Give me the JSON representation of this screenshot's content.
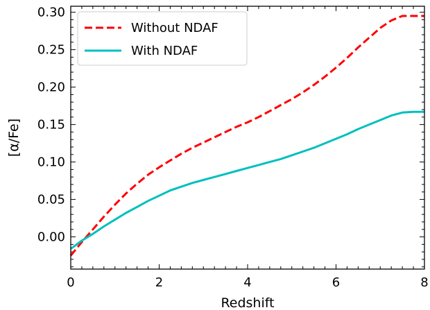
{
  "chart_data": {
    "type": "line",
    "xlabel": "Redshift",
    "ylabel": "[α/Fe]",
    "xlim": [
      0,
      8
    ],
    "ylim": [
      -0.043,
      0.308
    ],
    "x_ticks": [
      0,
      2,
      4,
      6,
      8
    ],
    "y_ticks": [
      0.0,
      0.05,
      0.1,
      0.15,
      0.2,
      0.25,
      0.3
    ],
    "x_tick_labels": [
      "0",
      "2",
      "4",
      "6",
      "8"
    ],
    "y_tick_labels": [
      "0.00",
      "0.05",
      "0.10",
      "0.15",
      "0.20",
      "0.25",
      "0.30"
    ],
    "grid": false,
    "legend_position": "top-left",
    "series": [
      {
        "name": "Without NDAF",
        "color": "#ff0000",
        "style": "dashed",
        "x": [
          0,
          0.25,
          0.5,
          0.75,
          1,
          1.25,
          1.5,
          1.75,
          2,
          2.25,
          2.5,
          2.75,
          3,
          3.25,
          3.5,
          3.75,
          4,
          4.25,
          4.5,
          4.75,
          5,
          5.25,
          5.5,
          5.75,
          6,
          6.25,
          6.5,
          6.75,
          7,
          7.25,
          7.5,
          7.75,
          8
        ],
        "y": [
          -0.025,
          -0.007,
          0.01,
          0.027,
          0.043,
          0.058,
          0.071,
          0.083,
          0.093,
          0.102,
          0.111,
          0.119,
          0.126,
          0.133,
          0.14,
          0.147,
          0.153,
          0.16,
          0.168,
          0.176,
          0.184,
          0.193,
          0.203,
          0.214,
          0.226,
          0.239,
          0.253,
          0.266,
          0.279,
          0.289,
          0.295,
          0.295,
          0.295
        ]
      },
      {
        "name": "With NDAF",
        "color": "#00bfbf",
        "style": "solid",
        "x": [
          0,
          0.25,
          0.5,
          0.75,
          1,
          1.25,
          1.5,
          1.75,
          2,
          2.25,
          2.5,
          2.75,
          3,
          3.25,
          3.5,
          3.75,
          4,
          4.25,
          4.5,
          4.75,
          5,
          5.25,
          5.5,
          5.75,
          6,
          6.25,
          6.5,
          6.75,
          7,
          7.25,
          7.5,
          7.75,
          8
        ],
        "y": [
          -0.016,
          -0.005,
          0.004,
          0.014,
          0.023,
          0.032,
          0.04,
          0.048,
          0.055,
          0.062,
          0.067,
          0.072,
          0.076,
          0.08,
          0.084,
          0.088,
          0.092,
          0.096,
          0.1,
          0.104,
          0.109,
          0.114,
          0.119,
          0.125,
          0.131,
          0.137,
          0.144,
          0.15,
          0.156,
          0.162,
          0.166,
          0.167,
          0.167
        ]
      }
    ]
  }
}
